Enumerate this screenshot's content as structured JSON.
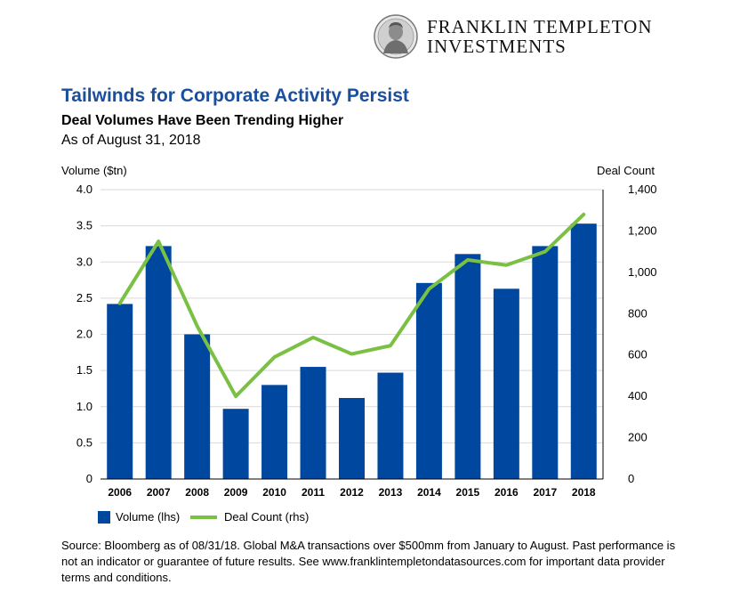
{
  "brand": {
    "line1": "FRANKLIN TEMPLETON",
    "line2": "INVESTMENTS"
  },
  "header": {
    "title": "Tailwinds for Corporate Activity Persist",
    "subtitle": "Deal Volumes Have Been Trending Higher",
    "as_of": "As of August 31, 2018"
  },
  "colors": {
    "title": "#1a4fa0",
    "bar": "#0047a0",
    "line": "#7ac143",
    "grid": "#d9d9d9"
  },
  "chart_data": {
    "type": "bar",
    "categories": [
      "2006",
      "2007",
      "2008",
      "2009",
      "2010",
      "2011",
      "2012",
      "2013",
      "2014",
      "2015",
      "2016",
      "2017",
      "2018"
    ],
    "series": [
      {
        "name": "Volume (lhs)",
        "type": "bar",
        "axis": "left",
        "values": [
          2.42,
          3.22,
          2.0,
          0.97,
          1.3,
          1.55,
          1.12,
          1.47,
          2.71,
          3.11,
          2.63,
          3.22,
          3.53
        ]
      },
      {
        "name": "Deal Count (rhs)",
        "type": "line",
        "axis": "right",
        "values": [
          850,
          1150,
          740,
          400,
          590,
          685,
          605,
          645,
          920,
          1060,
          1035,
          1100,
          1280
        ]
      }
    ],
    "ylabel_left": "Volume ($tn)",
    "ylabel_right": "Deal Count",
    "ylim_left": [
      0,
      4.0
    ],
    "ylim_right": [
      0,
      1400
    ],
    "yticks_left": [
      "0",
      "0.5",
      "1.0",
      "1.5",
      "2.0",
      "2.5",
      "3.0",
      "3.5",
      "4.0"
    ],
    "yticks_right": [
      "0",
      "200",
      "400",
      "600",
      "800",
      "1,000",
      "1,200",
      "1,400"
    ],
    "grid": true,
    "legend_position": "bottom-left"
  },
  "source_note": "Source: Bloomberg as of 08/31/18. Global M&A transactions over $500mm from January to August. Past performance is not an indicator or guarantee of future results. See www.franklintempletondatasources.com for important data provider terms and conditions."
}
